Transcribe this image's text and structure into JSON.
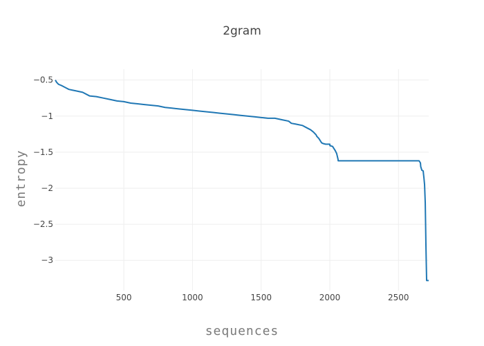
{
  "chart_data": {
    "type": "line",
    "title": "2gram",
    "xlabel": "sequences",
    "ylabel": "entropy",
    "xlim": [
      1,
      2720
    ],
    "ylim": [
      -3.42,
      -0.35
    ],
    "grid": true,
    "legend": "none",
    "line_color": "#1f77b4",
    "xticks": [
      500,
      1000,
      1500,
      2000,
      2500
    ],
    "xtick_labels": [
      "500",
      "1000",
      "1500",
      "2000",
      "2500"
    ],
    "yticks": [
      -0.5,
      -1,
      -1.5,
      -2,
      -2.5,
      -3
    ],
    "ytick_labels": [
      "−0.5",
      "−1",
      "−1.5",
      "−2",
      "−2.5",
      "−3"
    ],
    "series": [
      {
        "x": [
          1,
          10,
          25,
          50,
          80,
          100,
          125,
          150,
          200,
          250,
          300,
          350,
          400,
          450,
          500,
          550,
          600,
          650,
          700,
          750,
          800,
          850,
          900,
          950,
          1000,
          1050,
          1100,
          1150,
          1200,
          1250,
          1300,
          1350,
          1400,
          1450,
          1500,
          1550,
          1600,
          1650,
          1700,
          1720,
          1750,
          1800,
          1830,
          1860,
          1880,
          1900,
          1905,
          1920,
          1930,
          1940,
          1950,
          1970,
          1980,
          2000,
          2001,
          2020,
          2030,
          2040,
          2050,
          2055,
          2060,
          2061,
          2300,
          2500,
          2640,
          2650,
          2660,
          2662,
          2670,
          2680,
          2682,
          2685,
          2690,
          2695,
          2700,
          2702,
          2705,
          2720
        ],
        "y": [
          -0.5,
          -0.53,
          -0.56,
          -0.58,
          -0.61,
          -0.63,
          -0.64,
          -0.65,
          -0.67,
          -0.72,
          -0.73,
          -0.75,
          -0.77,
          -0.79,
          -0.8,
          -0.82,
          -0.83,
          -0.84,
          -0.85,
          -0.86,
          -0.88,
          -0.89,
          -0.9,
          -0.91,
          -0.92,
          -0.93,
          -0.94,
          -0.95,
          -0.96,
          -0.97,
          -0.98,
          -0.99,
          -1.0,
          -1.01,
          -1.02,
          -1.03,
          -1.03,
          -1.05,
          -1.07,
          -1.1,
          -1.11,
          -1.13,
          -1.16,
          -1.19,
          -1.22,
          -1.26,
          -1.28,
          -1.31,
          -1.34,
          -1.37,
          -1.38,
          -1.39,
          -1.39,
          -1.39,
          -1.41,
          -1.42,
          -1.45,
          -1.48,
          -1.52,
          -1.56,
          -1.6,
          -1.62,
          -1.62,
          -1.62,
          -1.62,
          -1.62,
          -1.65,
          -1.7,
          -1.75,
          -1.76,
          -1.8,
          -1.85,
          -1.95,
          -2.2,
          -2.8,
          -3.0,
          -3.28,
          -3.28
        ]
      }
    ]
  }
}
